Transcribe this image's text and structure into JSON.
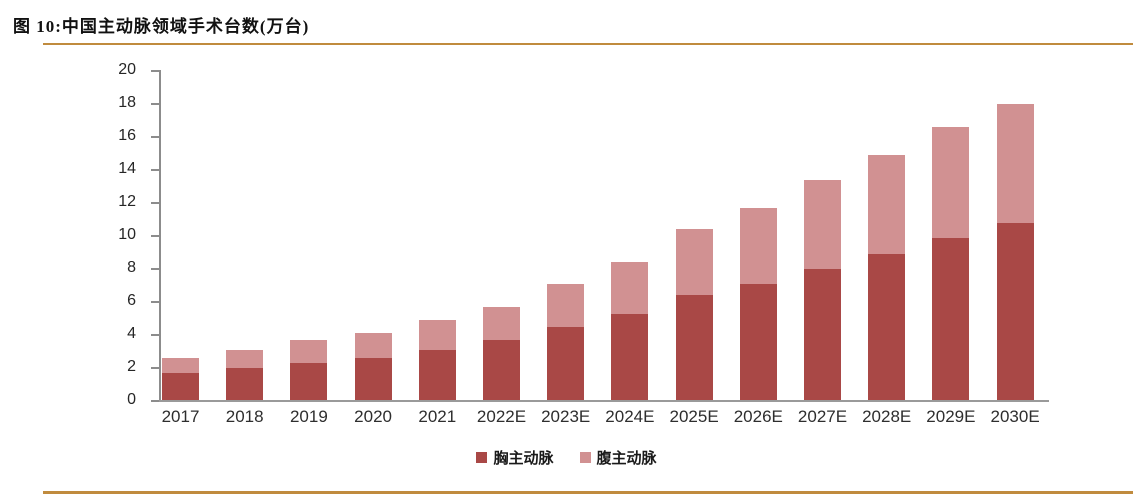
{
  "figure": {
    "title": "图 10:中国主动脉领域手术台数(万台)",
    "accent_color": "#C08B3E"
  },
  "chart_data": {
    "type": "bar",
    "stacked": true,
    "title": "中国主动脉领域手术台数(万台)",
    "xlabel": "",
    "ylabel": "",
    "ylim": [
      0,
      20
    ],
    "ytick_step": 2,
    "yticks": [
      0,
      2,
      4,
      6,
      8,
      10,
      12,
      14,
      16,
      18,
      20
    ],
    "grid": false,
    "legend_position": "bottom",
    "categories": [
      "2017",
      "2018",
      "2019",
      "2020",
      "2021",
      "2022E",
      "2023E",
      "2024E",
      "2025E",
      "2026E",
      "2027E",
      "2028E",
      "2029E",
      "2030E"
    ],
    "series": [
      {
        "name": "胸主动脉",
        "color": "#A94846",
        "values": [
          1.7,
          2.0,
          2.3,
          2.6,
          3.1,
          3.7,
          4.5,
          5.3,
          6.4,
          7.1,
          8.0,
          8.9,
          9.9,
          10.8
        ]
      },
      {
        "name": "腹主动脉",
        "color": "#D19192",
        "values": [
          0.9,
          1.1,
          1.4,
          1.5,
          1.8,
          2.0,
          2.6,
          3.1,
          4.0,
          4.6,
          5.4,
          6.0,
          6.7,
          7.2
        ]
      }
    ],
    "totals": [
      2.6,
      3.1,
      3.7,
      4.1,
      4.9,
      5.7,
      7.1,
      8.4,
      10.4,
      11.7,
      13.4,
      14.9,
      16.6,
      18.0
    ],
    "axis_color": "#8c8c8c"
  }
}
